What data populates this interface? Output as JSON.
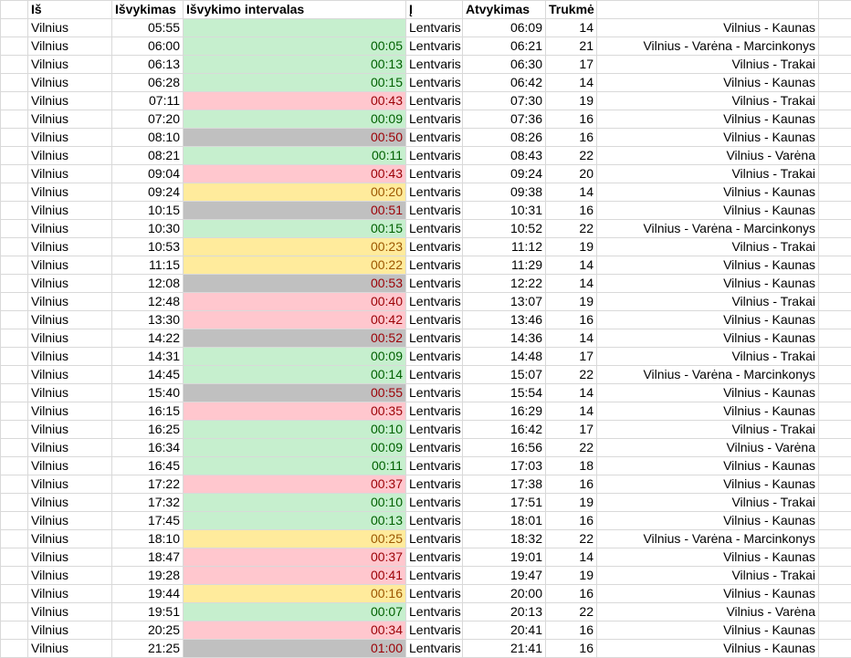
{
  "header": {
    "col_a": "Iš",
    "col_b": "Išvykimas",
    "col_c": "Išvykimo intervalas",
    "col_d": "Į",
    "col_e": "Atvykimas",
    "col_f": "Trukmė",
    "col_g": ""
  },
  "colors": {
    "green": {
      "bg": "#c6efce",
      "fg": "#006100"
    },
    "red": {
      "bg": "#ffc7ce",
      "fg": "#9c0006"
    },
    "yellow": {
      "bg": "#ffeb9c",
      "fg": "#9c5700"
    },
    "gray": {
      "bg": "#c0c0c0",
      "fg": "#9c0006"
    }
  },
  "rows": [
    {
      "from": "Vilnius",
      "dep": "05:55",
      "interval": "",
      "level": "green",
      "to": "Lentvaris",
      "arr": "06:09",
      "dur": "14",
      "route": "Vilnius - Kaunas"
    },
    {
      "from": "Vilnius",
      "dep": "06:00",
      "interval": "00:05",
      "level": "green",
      "to": "Lentvaris",
      "arr": "06:21",
      "dur": "21",
      "route": "Vilnius - Varėna - Marcinkonys"
    },
    {
      "from": "Vilnius",
      "dep": "06:13",
      "interval": "00:13",
      "level": "green",
      "to": "Lentvaris",
      "arr": "06:30",
      "dur": "17",
      "route": "Vilnius - Trakai"
    },
    {
      "from": "Vilnius",
      "dep": "06:28",
      "interval": "00:15",
      "level": "green",
      "to": "Lentvaris",
      "arr": "06:42",
      "dur": "14",
      "route": "Vilnius - Kaunas"
    },
    {
      "from": "Vilnius",
      "dep": "07:11",
      "interval": "00:43",
      "level": "red",
      "to": "Lentvaris",
      "arr": "07:30",
      "dur": "19",
      "route": "Vilnius - Trakai"
    },
    {
      "from": "Vilnius",
      "dep": "07:20",
      "interval": "00:09",
      "level": "green",
      "to": "Lentvaris",
      "arr": "07:36",
      "dur": "16",
      "route": "Vilnius - Kaunas"
    },
    {
      "from": "Vilnius",
      "dep": "08:10",
      "interval": "00:50",
      "level": "gray",
      "to": "Lentvaris",
      "arr": "08:26",
      "dur": "16",
      "route": "Vilnius - Kaunas"
    },
    {
      "from": "Vilnius",
      "dep": "08:21",
      "interval": "00:11",
      "level": "green",
      "to": "Lentvaris",
      "arr": "08:43",
      "dur": "22",
      "route": "Vilnius - Varėna"
    },
    {
      "from": "Vilnius",
      "dep": "09:04",
      "interval": "00:43",
      "level": "red",
      "to": "Lentvaris",
      "arr": "09:24",
      "dur": "20",
      "route": "Vilnius - Trakai"
    },
    {
      "from": "Vilnius",
      "dep": "09:24",
      "interval": "00:20",
      "level": "yellow",
      "to": "Lentvaris",
      "arr": "09:38",
      "dur": "14",
      "route": "Vilnius - Kaunas"
    },
    {
      "from": "Vilnius",
      "dep": "10:15",
      "interval": "00:51",
      "level": "gray",
      "to": "Lentvaris",
      "arr": "10:31",
      "dur": "16",
      "route": "Vilnius - Kaunas"
    },
    {
      "from": "Vilnius",
      "dep": "10:30",
      "interval": "00:15",
      "level": "green",
      "to": "Lentvaris",
      "arr": "10:52",
      "dur": "22",
      "route": "Vilnius - Varėna - Marcinkonys"
    },
    {
      "from": "Vilnius",
      "dep": "10:53",
      "interval": "00:23",
      "level": "yellow",
      "to": "Lentvaris",
      "arr": "11:12",
      "dur": "19",
      "route": "Vilnius - Trakai"
    },
    {
      "from": "Vilnius",
      "dep": "11:15",
      "interval": "00:22",
      "level": "yellow",
      "to": "Lentvaris",
      "arr": "11:29",
      "dur": "14",
      "route": "Vilnius - Kaunas"
    },
    {
      "from": "Vilnius",
      "dep": "12:08",
      "interval": "00:53",
      "level": "gray",
      "to": "Lentvaris",
      "arr": "12:22",
      "dur": "14",
      "route": "Vilnius - Kaunas"
    },
    {
      "from": "Vilnius",
      "dep": "12:48",
      "interval": "00:40",
      "level": "red",
      "to": "Lentvaris",
      "arr": "13:07",
      "dur": "19",
      "route": "Vilnius - Trakai"
    },
    {
      "from": "Vilnius",
      "dep": "13:30",
      "interval": "00:42",
      "level": "red",
      "to": "Lentvaris",
      "arr": "13:46",
      "dur": "16",
      "route": "Vilnius - Kaunas"
    },
    {
      "from": "Vilnius",
      "dep": "14:22",
      "interval": "00:52",
      "level": "gray",
      "to": "Lentvaris",
      "arr": "14:36",
      "dur": "14",
      "route": "Vilnius - Kaunas"
    },
    {
      "from": "Vilnius",
      "dep": "14:31",
      "interval": "00:09",
      "level": "green",
      "to": "Lentvaris",
      "arr": "14:48",
      "dur": "17",
      "route": "Vilnius - Trakai"
    },
    {
      "from": "Vilnius",
      "dep": "14:45",
      "interval": "00:14",
      "level": "green",
      "to": "Lentvaris",
      "arr": "15:07",
      "dur": "22",
      "route": "Vilnius - Varėna - Marcinkonys"
    },
    {
      "from": "Vilnius",
      "dep": "15:40",
      "interval": "00:55",
      "level": "gray",
      "to": "Lentvaris",
      "arr": "15:54",
      "dur": "14",
      "route": "Vilnius - Kaunas"
    },
    {
      "from": "Vilnius",
      "dep": "16:15",
      "interval": "00:35",
      "level": "red",
      "to": "Lentvaris",
      "arr": "16:29",
      "dur": "14",
      "route": "Vilnius - Kaunas"
    },
    {
      "from": "Vilnius",
      "dep": "16:25",
      "interval": "00:10",
      "level": "green",
      "to": "Lentvaris",
      "arr": "16:42",
      "dur": "17",
      "route": "Vilnius - Trakai"
    },
    {
      "from": "Vilnius",
      "dep": "16:34",
      "interval": "00:09",
      "level": "green",
      "to": "Lentvaris",
      "arr": "16:56",
      "dur": "22",
      "route": "Vilnius - Varėna"
    },
    {
      "from": "Vilnius",
      "dep": "16:45",
      "interval": "00:11",
      "level": "green",
      "to": "Lentvaris",
      "arr": "17:03",
      "dur": "18",
      "route": "Vilnius - Kaunas"
    },
    {
      "from": "Vilnius",
      "dep": "17:22",
      "interval": "00:37",
      "level": "red",
      "to": "Lentvaris",
      "arr": "17:38",
      "dur": "16",
      "route": "Vilnius - Kaunas"
    },
    {
      "from": "Vilnius",
      "dep": "17:32",
      "interval": "00:10",
      "level": "green",
      "to": "Lentvaris",
      "arr": "17:51",
      "dur": "19",
      "route": "Vilnius - Trakai"
    },
    {
      "from": "Vilnius",
      "dep": "17:45",
      "interval": "00:13",
      "level": "green",
      "to": "Lentvaris",
      "arr": "18:01",
      "dur": "16",
      "route": "Vilnius - Kaunas"
    },
    {
      "from": "Vilnius",
      "dep": "18:10",
      "interval": "00:25",
      "level": "yellow",
      "to": "Lentvaris",
      "arr": "18:32",
      "dur": "22",
      "route": "Vilnius - Varėna - Marcinkonys"
    },
    {
      "from": "Vilnius",
      "dep": "18:47",
      "interval": "00:37",
      "level": "red",
      "to": "Lentvaris",
      "arr": "19:01",
      "dur": "14",
      "route": "Vilnius - Kaunas"
    },
    {
      "from": "Vilnius",
      "dep": "19:28",
      "interval": "00:41",
      "level": "red",
      "to": "Lentvaris",
      "arr": "19:47",
      "dur": "19",
      "route": "Vilnius - Trakai"
    },
    {
      "from": "Vilnius",
      "dep": "19:44",
      "interval": "00:16",
      "level": "yellow",
      "to": "Lentvaris",
      "arr": "20:00",
      "dur": "16",
      "route": "Vilnius - Kaunas"
    },
    {
      "from": "Vilnius",
      "dep": "19:51",
      "interval": "00:07",
      "level": "green",
      "to": "Lentvaris",
      "arr": "20:13",
      "dur": "22",
      "route": "Vilnius - Varėna"
    },
    {
      "from": "Vilnius",
      "dep": "20:25",
      "interval": "00:34",
      "level": "red",
      "to": "Lentvaris",
      "arr": "20:41",
      "dur": "16",
      "route": "Vilnius - Kaunas"
    },
    {
      "from": "Vilnius",
      "dep": "21:25",
      "interval": "01:00",
      "level": "gray",
      "to": "Lentvaris",
      "arr": "21:41",
      "dur": "16",
      "route": "Vilnius - Kaunas"
    }
  ]
}
